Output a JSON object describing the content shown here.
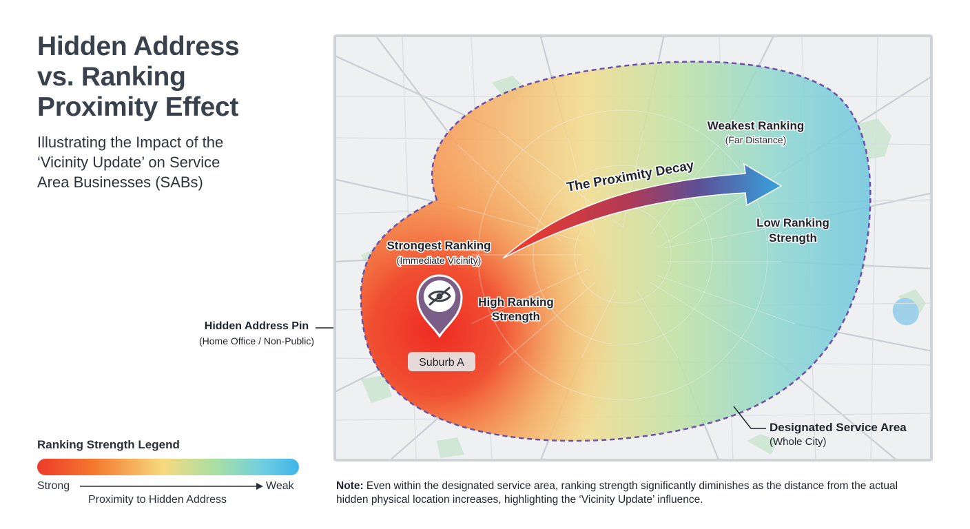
{
  "header": {
    "title_lines": [
      "Hidden Address",
      "vs. Ranking",
      "Proximity Effect"
    ],
    "subtitle_lines": [
      "Illustrating the Impact of the",
      "‘Vicinity Update’ on Service",
      "Area Businesses (SABs)"
    ]
  },
  "map": {
    "labels": {
      "strongest": {
        "title": "Strongest Ranking",
        "sub": "(Immediate Vicinity)"
      },
      "high": [
        "High Ranking",
        "Strength"
      ],
      "weakest": {
        "title": "Weakest Ranking",
        "sub": "(Far Distance)"
      },
      "low": [
        "Low Ranking",
        "Strength"
      ],
      "decay": "The Proximity Decay",
      "suburb": "Suburb A",
      "pin_icon": "hidden-eye-icon"
    },
    "colors": {
      "strong": "#ee3b2a",
      "mid": "#f7d97e",
      "weak": "#3fb4ea",
      "boundary": "#6b4fa8",
      "pin": "#7b5e88"
    }
  },
  "pin_callout": {
    "title": "Hidden Address Pin",
    "sub": "(Home Office / Non-Public)"
  },
  "area_callout": {
    "title": "Designated Service Area",
    "sub": "(Whole City)"
  },
  "legend": {
    "title": "Ranking Strength Legend",
    "strong": "Strong",
    "weak": "Weak",
    "caption": "Proximity to Hidden Address"
  },
  "note": {
    "label": "Note:",
    "text": "Even within the designated service area, ranking strength significantly diminishes as the distance from the actual hidden physical location increases, highlighting the ‘Vicinity Update’ influence."
  }
}
